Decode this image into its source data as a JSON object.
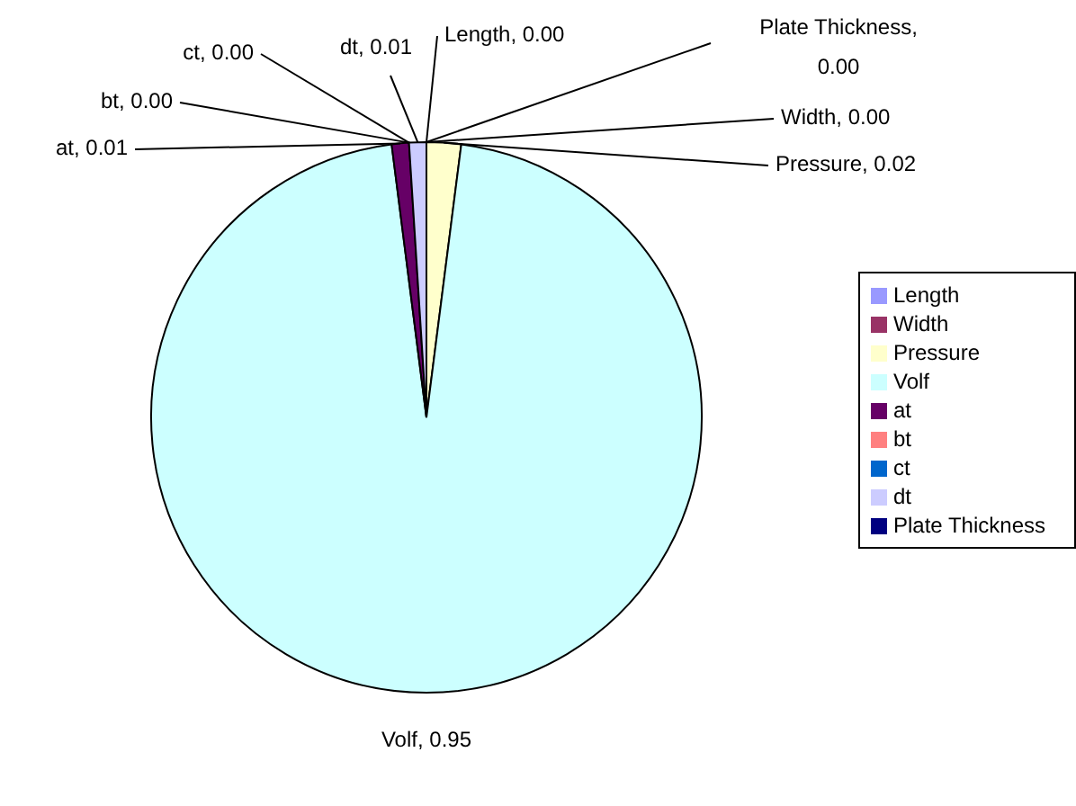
{
  "chart_data": {
    "type": "pie",
    "categories": [
      "Length",
      "Width",
      "Pressure",
      "Volf",
      "at",
      "bt",
      "ct",
      "dt",
      "Plate Thickness"
    ],
    "values": [
      0,
      0,
      0.02,
      0.95,
      0.01,
      0,
      0,
      0.01,
      0
    ],
    "colors": [
      "#9999ff",
      "#993366",
      "#ffffcc",
      "#ccffff",
      "#660066",
      "#ff8080",
      "#0066cc",
      "#ccccff",
      "#000080"
    ],
    "value_labels": [
      "Length, 0.00",
      "Width, 0.00",
      "Pressure, 0.02",
      "Volf, 0.95",
      "at, 0.01",
      "bt, 0.00",
      "ct, 0.00",
      "dt, 0.01",
      "Plate Thickness, 0.00"
    ],
    "legend": "right"
  }
}
